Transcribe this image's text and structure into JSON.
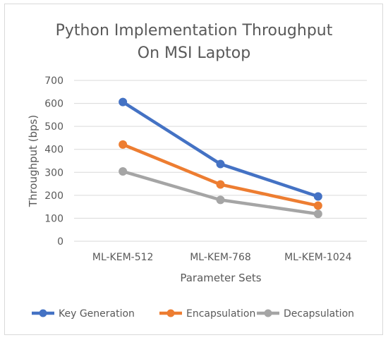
{
  "chart_data": {
    "type": "line",
    "title_lines": [
      "Python Implementation Throughput",
      "On MSI Laptop"
    ],
    "xlabel": "Parameter Sets",
    "ylabel": "Throughput (bps)",
    "categories": [
      "ML-KEM-512",
      "ML-KEM-768",
      "ML-KEM-1024"
    ],
    "ylim": [
      0,
      700
    ],
    "yticks": [
      0,
      100,
      200,
      300,
      400,
      500,
      600,
      700
    ],
    "grid": true,
    "legend_position": "bottom",
    "series": [
      {
        "name": "Key Generation",
        "values": [
          606,
          336,
          195
        ],
        "color": "#4472c4"
      },
      {
        "name": "Encapsulation",
        "values": [
          421,
          247,
          155
        ],
        "color": "#ed7d31"
      },
      {
        "name": "Decapsulation",
        "values": [
          304,
          180,
          119
        ],
        "color": "#a5a5a5"
      }
    ]
  }
}
